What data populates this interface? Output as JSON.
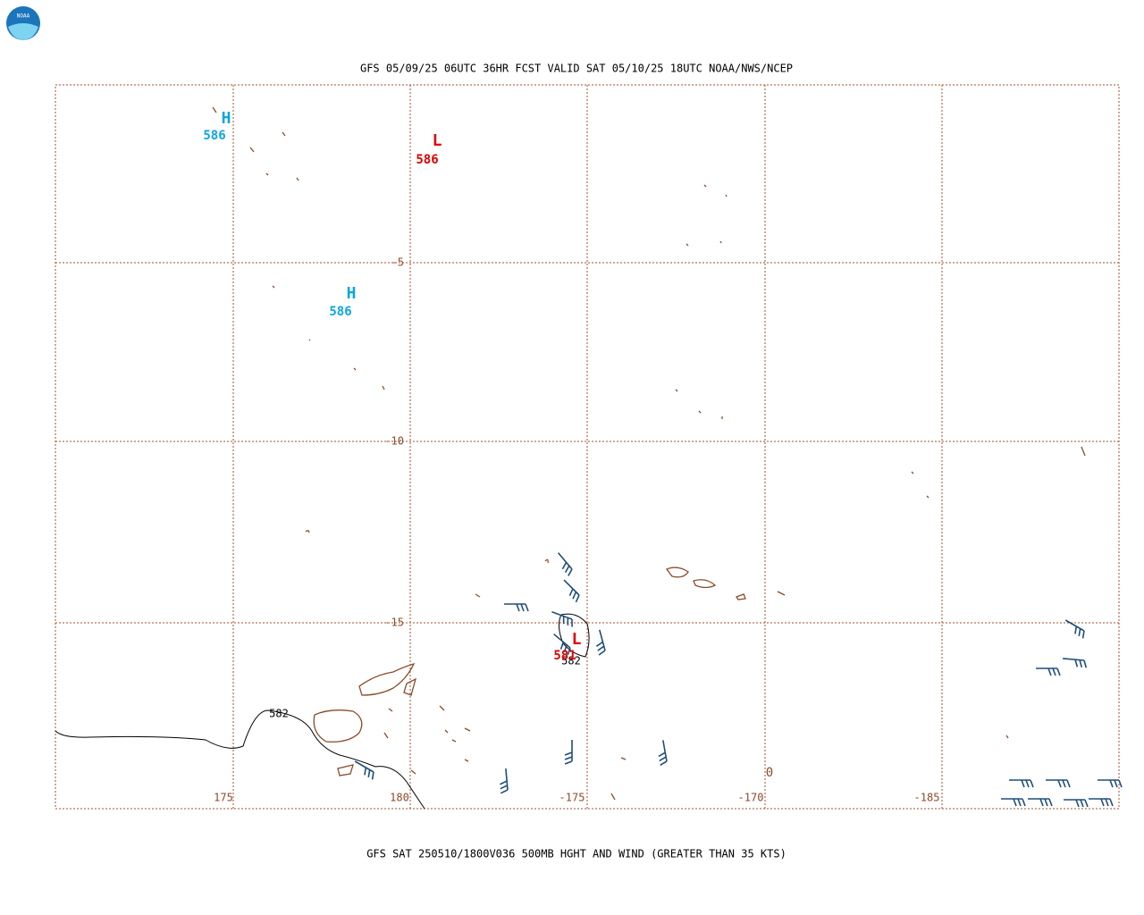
{
  "header": {
    "logo": "NOAA",
    "title": "GFS 05/09/25 06UTC 36HR FCST VALID SAT 05/10/25 18UTC NOAA/NWS/NCEP"
  },
  "map": {
    "lat_labels": [
      "-5",
      "-10",
      "-15"
    ],
    "lon_labels": [
      "175",
      "180",
      "-175",
      "-170",
      "-185"
    ],
    "centers": [
      {
        "symbol": "H",
        "value": "586"
      },
      {
        "symbol": "L",
        "value": "586"
      },
      {
        "symbol": "H",
        "value": "586"
      },
      {
        "symbol": "L",
        "value": "581"
      }
    ],
    "contour_labels": [
      "582",
      "582"
    ],
    "stray_label": "0"
  },
  "footer": "GFS SAT 250510/1800V036 500MB HGHT AND WIND (GREATER THAN 35 KTS)"
}
